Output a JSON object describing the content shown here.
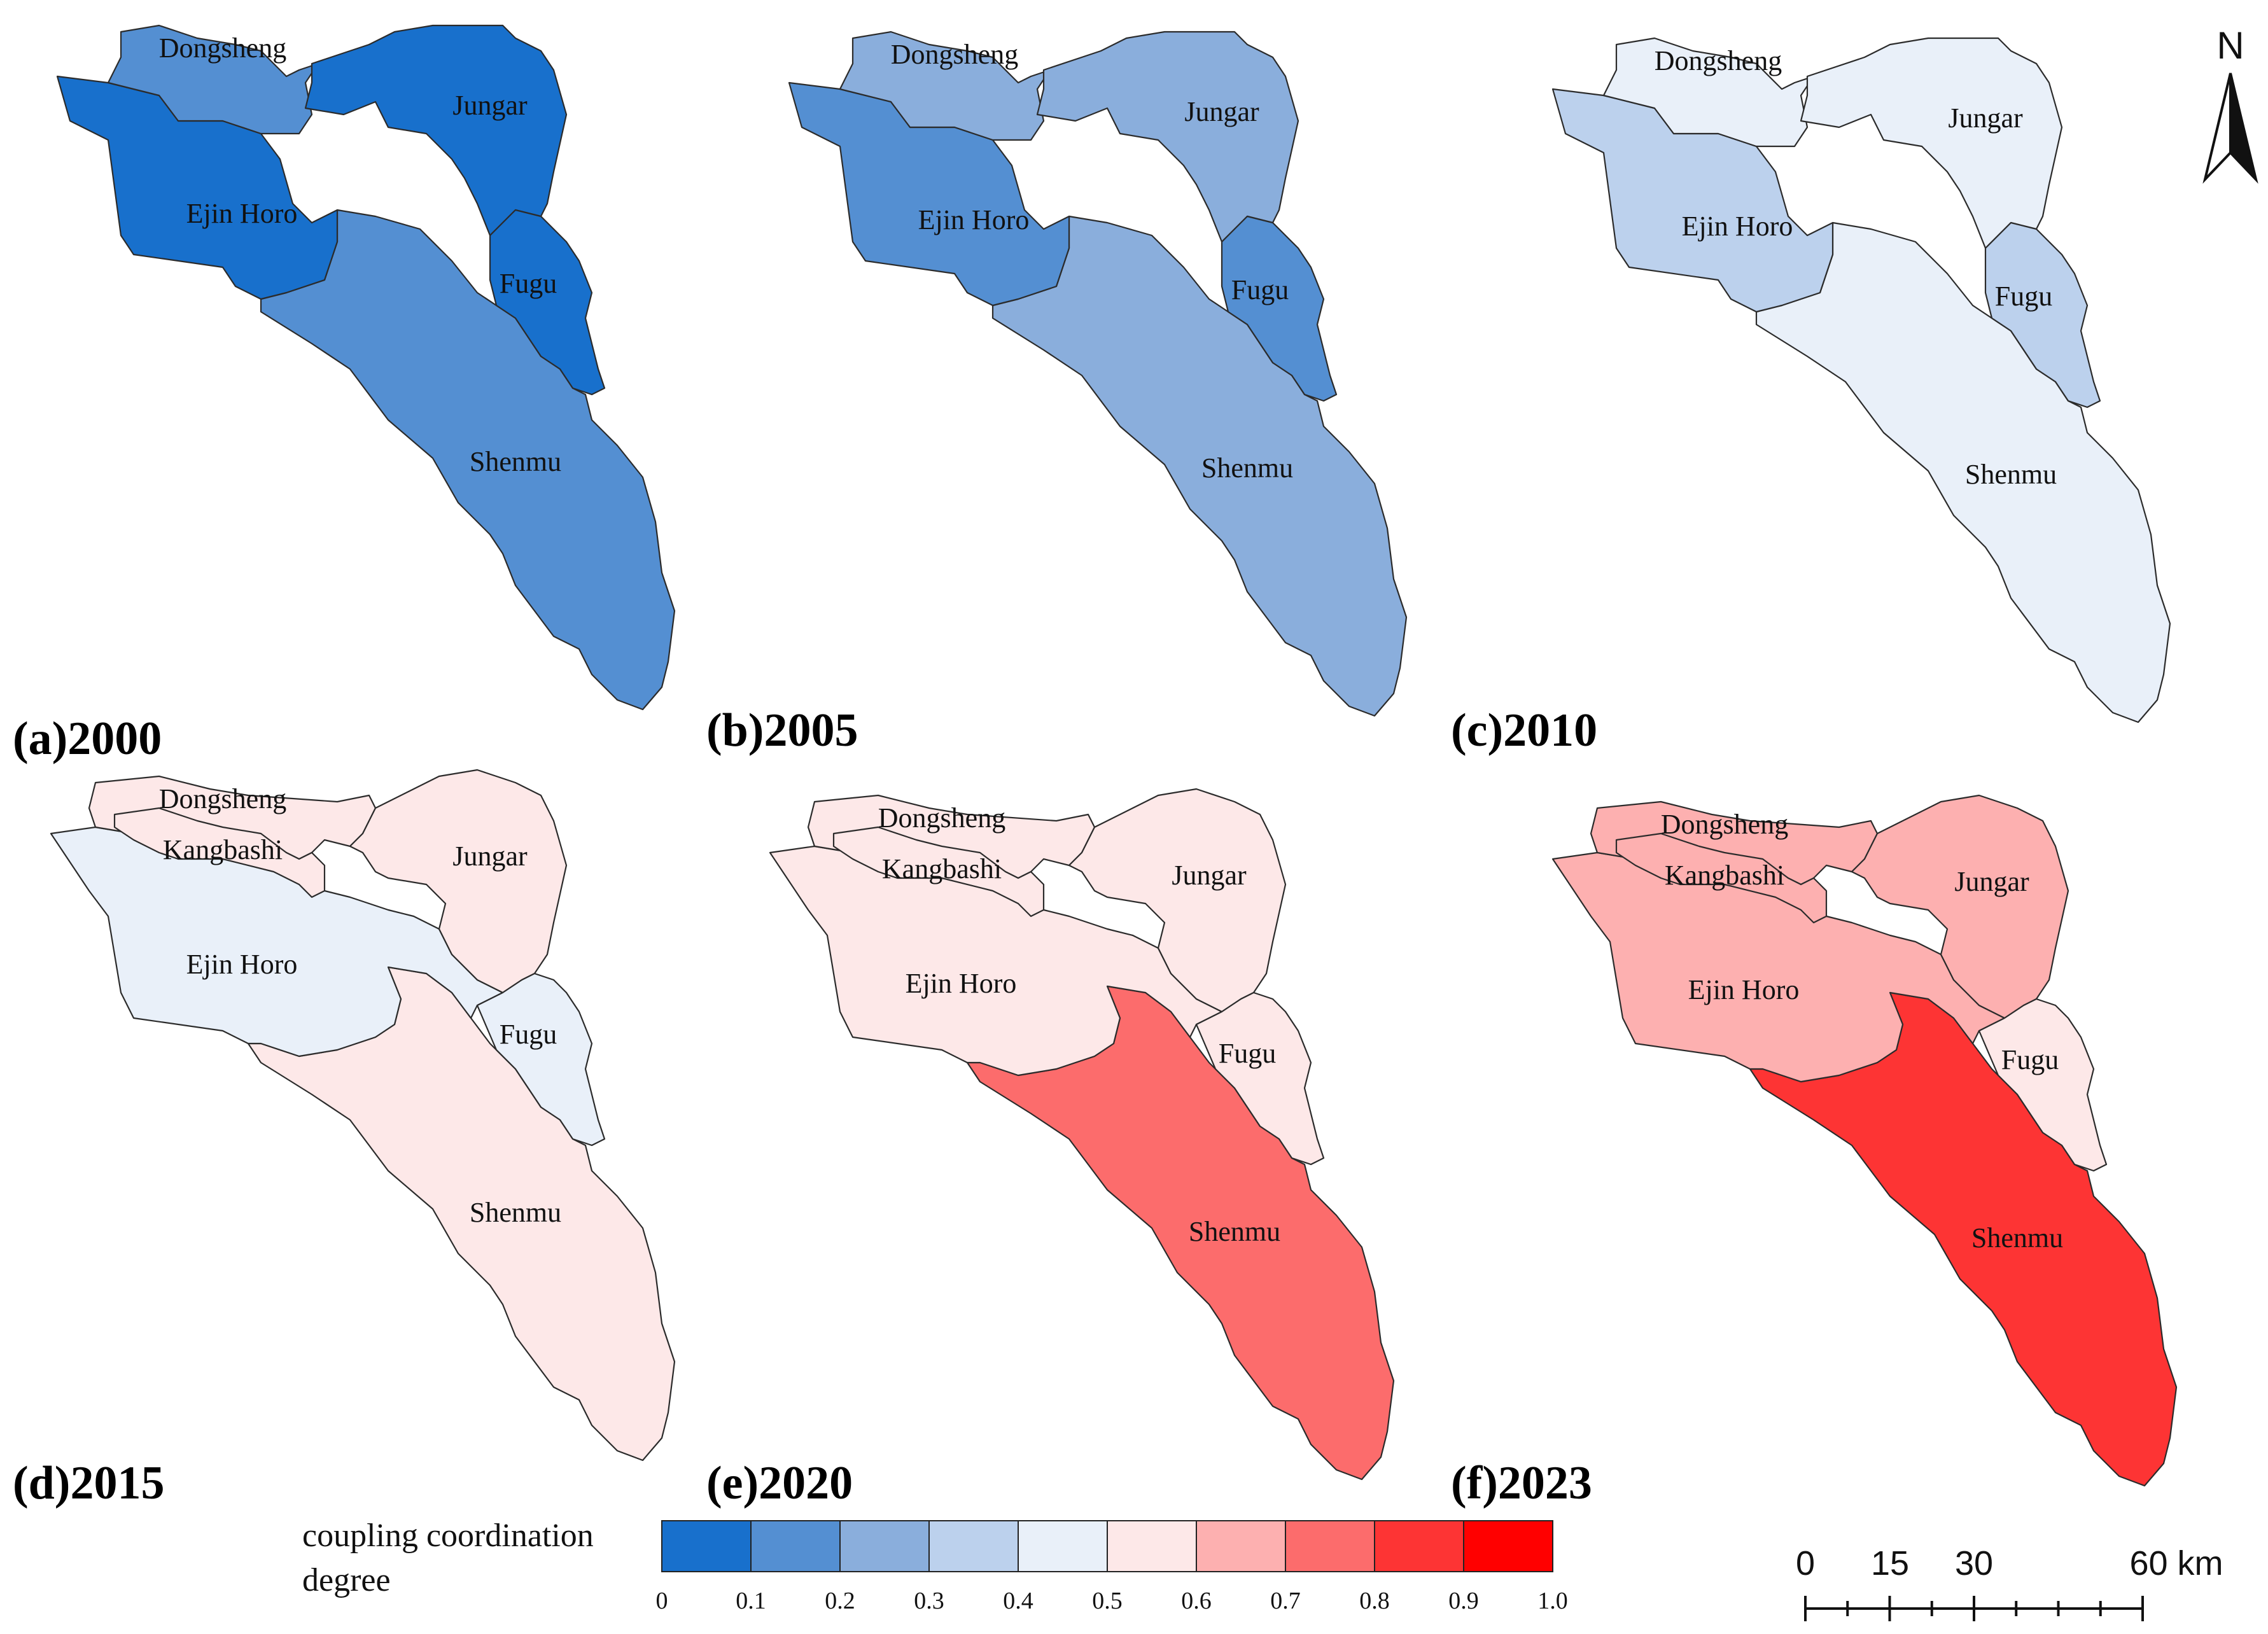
{
  "legend": {
    "title_line1": "coupling coordination",
    "title_line2": "degree",
    "ticks": [
      "0",
      "0.1",
      "0.2",
      "0.3",
      "0.4",
      "0.5",
      "0.6",
      "0.7",
      "0.8",
      "0.9",
      "1.0"
    ],
    "colors": [
      "#1870cc",
      "#548fd2",
      "#8aaedc",
      "#bcd1ed",
      "#e9f0f9",
      "#fde8e8",
      "#fdb0b0",
      "#fc6c6c",
      "#fd3434",
      "#ff0000"
    ]
  },
  "north_arrow": {
    "label": "N"
  },
  "scale_bar": {
    "labels": [
      "0",
      "15",
      "30",
      "60 km"
    ]
  },
  "region_names": {
    "dongsheng": "Dongsheng",
    "jungar": "Jungar",
    "ejin_horo": "Ejin Horo",
    "fugu": "Fugu",
    "shenmu": "Shenmu",
    "kangbashi": "Kangbashi"
  },
  "panels": [
    {
      "label": "(a)2000",
      "regions": {
        "dongsheng": "#548fd2",
        "jungar": "#1870cc",
        "ejin_horo": "#1870cc",
        "fugu": "#1870cc",
        "shenmu": "#548fd2"
      }
    },
    {
      "label": "(b)2005",
      "regions": {
        "dongsheng": "#8aaedc",
        "jungar": "#8aaedc",
        "ejin_horo": "#548fd2",
        "fugu": "#548fd2",
        "shenmu": "#8aaedc"
      }
    },
    {
      "label": "(c)2010",
      "regions": {
        "dongsheng": "#e9f0f9",
        "jungar": "#e9f0f9",
        "ejin_horo": "#bcd1ed",
        "fugu": "#bcd1ed",
        "shenmu": "#e9f0f9"
      }
    },
    {
      "label": "(d)2015",
      "regions": {
        "dongsheng": "#fde8e8",
        "kangbashi": "#fde8e8",
        "jungar": "#fde8e8",
        "ejin_horo": "#e9f0f9",
        "fugu": "#e9f0f9",
        "shenmu": "#fde8e8"
      }
    },
    {
      "label": "(e)2020",
      "regions": {
        "dongsheng": "#fde8e8",
        "kangbashi": "#fde8e8",
        "jungar": "#fde8e8",
        "ejin_horo": "#fde8e8",
        "fugu": "#fde8e8",
        "shenmu": "#fc6c6c"
      }
    },
    {
      "label": "(f)2023",
      "regions": {
        "dongsheng": "#fdb0b0",
        "kangbashi": "#fdb0b0",
        "jungar": "#fdb0b0",
        "ejin_horo": "#fdb0b0",
        "fugu": "#fde8e8",
        "shenmu": "#fd3434"
      }
    }
  ]
}
